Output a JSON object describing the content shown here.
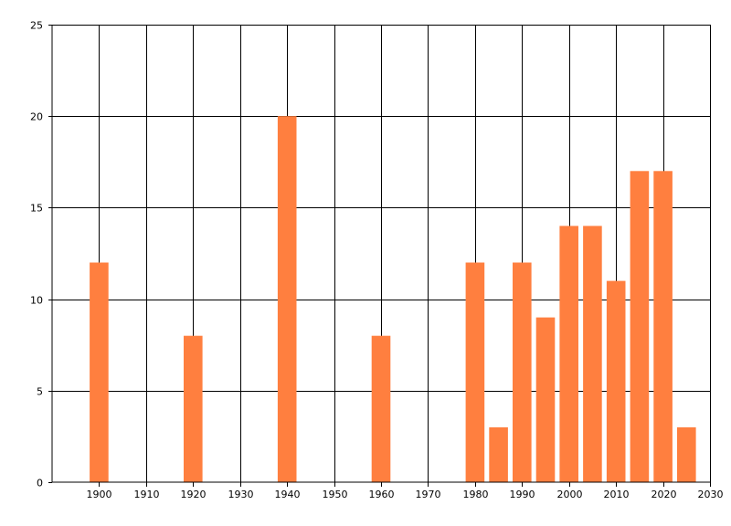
{
  "chart_data": {
    "type": "bar",
    "x": [
      1900,
      1920,
      1940,
      1960,
      1980,
      1985,
      1990,
      1995,
      2000,
      2005,
      2010,
      2015,
      2020,
      2025
    ],
    "values": [
      12,
      8,
      20,
      8,
      12,
      3,
      12,
      9,
      14,
      14,
      11,
      17,
      17,
      3
    ],
    "title": "",
    "xlabel": "",
    "ylabel": "",
    "xlim": [
      1890,
      2030
    ],
    "ylim": [
      0,
      25
    ],
    "x_ticks": [
      1900,
      1910,
      1920,
      1930,
      1940,
      1950,
      1960,
      1970,
      1980,
      1990,
      2000,
      2010,
      2020,
      2030
    ],
    "y_ticks": [
      0,
      5,
      10,
      15,
      20,
      25
    ],
    "grid": true,
    "legend": "none",
    "bar_color": "#FF7F3F"
  }
}
